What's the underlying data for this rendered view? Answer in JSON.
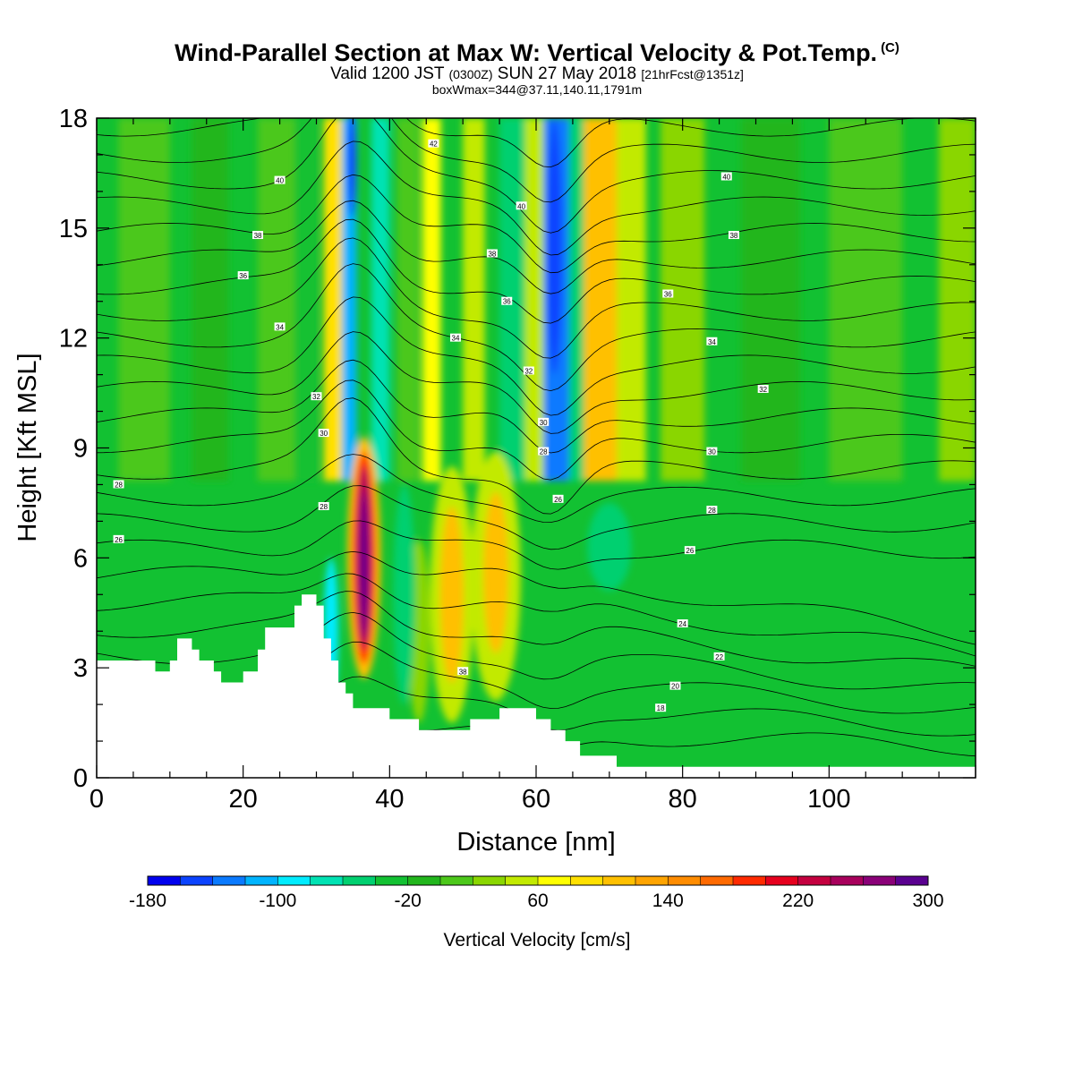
{
  "header": {
    "title_main": "Wind-Parallel Section at Max W: Vertical Velocity & Pot.Temp.",
    "title_mark": "(C)",
    "valid_a": "Valid 1200 JST",
    "valid_b": "(0300Z)",
    "valid_c": "SUN 27 May 2018",
    "valid_d": "[21hrFcst@1351z]",
    "box": "boxWmax=344@37.11,140.11,1791m"
  },
  "chart_data": {
    "type": "heatmap",
    "xlabel": "Distance [nm]",
    "ylabel": "Height [Kft MSL]",
    "xlim": [
      0,
      120
    ],
    "ylim": [
      0,
      18
    ],
    "x_ticks": [
      0,
      20,
      40,
      60,
      80,
      100
    ],
    "y_ticks": [
      0,
      3,
      6,
      9,
      12,
      15,
      18
    ],
    "colorbar": {
      "label": "Vertical Velocity [cm/s]",
      "min": -180,
      "max": 300,
      "step": 20,
      "tick_labels": [
        -180,
        -100,
        -20,
        60,
        140,
        220,
        300
      ],
      "colors": [
        "#0000ee",
        "#0b43ff",
        "#0a7aff",
        "#00b4ff",
        "#00ecff",
        "#00e2b3",
        "#00d070",
        "#12c132",
        "#22b61d",
        "#4cc81a",
        "#8ad600",
        "#c2ea00",
        "#ffff00",
        "#ffe000",
        "#ffc000",
        "#ffa400",
        "#ff8c00",
        "#ff6a00",
        "#ff2a00",
        "#e6001e",
        "#c4003f",
        "#a8005c",
        "#8a0078",
        "#5a0090"
      ]
    },
    "terrain_top_kft": [
      [
        0,
        3.2
      ],
      [
        8,
        3.2
      ],
      [
        8,
        2.9
      ],
      [
        10,
        2.9
      ],
      [
        10,
        3.2
      ],
      [
        11,
        3.2
      ],
      [
        11,
        3.8
      ],
      [
        13,
        3.8
      ],
      [
        13,
        3.5
      ],
      [
        14,
        3.5
      ],
      [
        14,
        3.2
      ],
      [
        16,
        3.2
      ],
      [
        16,
        2.9
      ],
      [
        17,
        2.9
      ],
      [
        17,
        2.6
      ],
      [
        20,
        2.6
      ],
      [
        20,
        2.9
      ],
      [
        22,
        2.9
      ],
      [
        22,
        3.5
      ],
      [
        23,
        3.5
      ],
      [
        23,
        4.1
      ],
      [
        27,
        4.1
      ],
      [
        27,
        4.7
      ],
      [
        28,
        4.7
      ],
      [
        28,
        5.0
      ],
      [
        30,
        5.0
      ],
      [
        30,
        4.7
      ],
      [
        31,
        4.7
      ],
      [
        31,
        3.8
      ],
      [
        32,
        3.8
      ],
      [
        32,
        3.2
      ],
      [
        33,
        3.2
      ],
      [
        33,
        2.6
      ],
      [
        34,
        2.6
      ],
      [
        34,
        2.3
      ],
      [
        35,
        2.3
      ],
      [
        35,
        1.9
      ],
      [
        40,
        1.9
      ],
      [
        40,
        1.6
      ],
      [
        44,
        1.6
      ],
      [
        44,
        1.3
      ],
      [
        51,
        1.3
      ],
      [
        51,
        1.6
      ],
      [
        55,
        1.6
      ],
      [
        55,
        1.9
      ],
      [
        60,
        1.9
      ],
      [
        60,
        1.6
      ],
      [
        62,
        1.6
      ],
      [
        62,
        1.3
      ],
      [
        64,
        1.3
      ],
      [
        64,
        1.0
      ],
      [
        66,
        1.0
      ],
      [
        66,
        0.6
      ],
      [
        71,
        0.6
      ],
      [
        71,
        0.3
      ],
      [
        120,
        0.3
      ]
    ],
    "w_features": [
      {
        "x": 36.5,
        "z": 6.0,
        "peak_cm_s": 300
      },
      {
        "x": 48.5,
        "z": 5.0,
        "peak_cm_s": 100
      },
      {
        "x": 54.5,
        "z": 5.5,
        "peak_cm_s": 100
      },
      {
        "x": 62.5,
        "z": 15.5,
        "peak_cm_s": -160
      },
      {
        "x": 34.5,
        "z": 16.5,
        "peak_cm_s": -140
      },
      {
        "x": 69.0,
        "z": 17.0,
        "peak_cm_s": 120
      }
    ],
    "theta_contour_labels": [
      {
        "text": "42",
        "x": 46,
        "z": 17.3
      },
      {
        "text": "40",
        "x": 25,
        "z": 16.3
      },
      {
        "text": "40",
        "x": 86,
        "z": 16.4
      },
      {
        "text": "40",
        "x": 58,
        "z": 15.6
      },
      {
        "text": "38",
        "x": 22,
        "z": 14.8
      },
      {
        "text": "38",
        "x": 87,
        "z": 14.8
      },
      {
        "text": "38",
        "x": 54,
        "z": 14.3
      },
      {
        "text": "36",
        "x": 20,
        "z": 13.7
      },
      {
        "text": "36",
        "x": 56,
        "z": 13.0
      },
      {
        "text": "36",
        "x": 78,
        "z": 13.2
      },
      {
        "text": "34",
        "x": 25,
        "z": 12.3
      },
      {
        "text": "34",
        "x": 49,
        "z": 12.0
      },
      {
        "text": "34",
        "x": 84,
        "z": 11.9
      },
      {
        "text": "32",
        "x": 59,
        "z": 11.1
      },
      {
        "text": "32",
        "x": 91,
        "z": 10.6
      },
      {
        "text": "32",
        "x": 30,
        "z": 10.4
      },
      {
        "text": "30",
        "x": 31,
        "z": 9.4
      },
      {
        "text": "30",
        "x": 61,
        "z": 9.7
      },
      {
        "text": "30",
        "x": 84,
        "z": 8.9
      },
      {
        "text": "28",
        "x": 61,
        "z": 8.9
      },
      {
        "text": "28",
        "x": 3,
        "z": 8.0
      },
      {
        "text": "28",
        "x": 84,
        "z": 7.3
      },
      {
        "text": "28",
        "x": 31,
        "z": 7.4
      },
      {
        "text": "26",
        "x": 63,
        "z": 7.6
      },
      {
        "text": "26",
        "x": 3,
        "z": 6.5
      },
      {
        "text": "26",
        "x": 81,
        "z": 6.2
      },
      {
        "text": "24",
        "x": 80,
        "z": 4.2
      },
      {
        "text": "22",
        "x": 85,
        "z": 3.3
      },
      {
        "text": "20",
        "x": 79,
        "z": 2.5
      },
      {
        "text": "18",
        "x": 77,
        "z": 1.9
      },
      {
        "text": "38",
        "x": 50,
        "z": 2.9
      }
    ]
  }
}
